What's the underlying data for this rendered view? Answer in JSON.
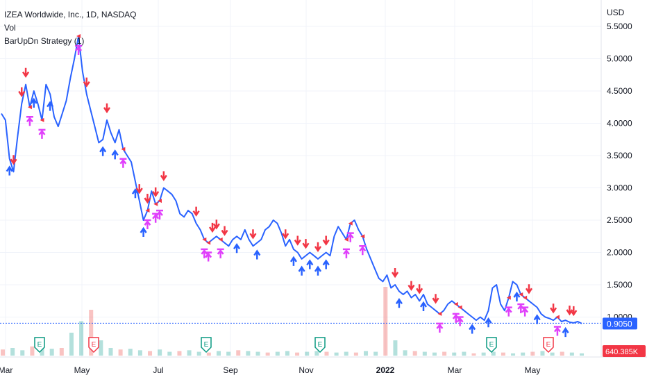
{
  "legend": {
    "title": "IZEA Worldwide, Inc., 1D, NASDAQ",
    "vol": "Vol",
    "strategy": "BarUpDn Strategy (1)"
  },
  "colors": {
    "line": "#2962ff",
    "sell_signal": "#f23645",
    "close_signal": "#e040fb",
    "buy_signal": "#2962ff",
    "price_label_bg": "#2962ff",
    "volume_label_bg": "#f23645",
    "volume_up": "#26a69a",
    "volume_down": "#ef5350",
    "earnings_green": "#089981",
    "earnings_red": "#f23645"
  },
  "chart_data": {
    "type": "line",
    "currency": "USD",
    "y_ticks": [
      "5.5000",
      "5.0000",
      "4.5000",
      "4.0000",
      "3.5000",
      "3.0000",
      "2.5000",
      "2.0000",
      "1.5000",
      "1.0000"
    ],
    "ylim": [
      0.85,
      5.6
    ],
    "x_labels": [
      "Mar",
      "May",
      "Jul",
      "Sep",
      "Nov",
      "2022",
      "Mar",
      "May"
    ],
    "last_price": "0.9050",
    "last_volume": "640.385K",
    "earnings_markers": [
      "E",
      "E",
      "E",
      "E",
      "E",
      "E"
    ],
    "series": [
      {
        "values": [
          4.15,
          4.05,
          3.45,
          3.25,
          3.8,
          4.3,
          4.6,
          4.25,
          4.5,
          4.3,
          4.05,
          4.6,
          4.45,
          4.1,
          3.95,
          4.15,
          4.35,
          4.7,
          5.0,
          5.35,
          4.8,
          4.45,
          4.2,
          3.95,
          3.7,
          3.75,
          4.05,
          3.85,
          3.7,
          3.9,
          3.6,
          3.5,
          3.4,
          3.1,
          2.8,
          2.5,
          2.65,
          2.95,
          2.75,
          2.8,
          3.0,
          2.95,
          2.9,
          2.8,
          2.6,
          2.55,
          2.65,
          2.6,
          2.45,
          2.35,
          2.2,
          2.15,
          2.2,
          2.25,
          2.2,
          2.15,
          2.1,
          2.2,
          2.25,
          2.2,
          2.35,
          2.2,
          2.1,
          2.15,
          2.2,
          2.35,
          2.4,
          2.5,
          2.45,
          2.3,
          2.1,
          2.2,
          2.05,
          2.0,
          1.9,
          1.95,
          2.0,
          1.95,
          1.9,
          1.95,
          2.0,
          1.95,
          2.25,
          2.4,
          2.3,
          2.2,
          2.45,
          2.5,
          2.35,
          2.25,
          2.05,
          1.9,
          1.75,
          1.6,
          1.55,
          1.65,
          1.45,
          1.5,
          1.4,
          1.35,
          1.4,
          1.3,
          1.35,
          1.25,
          1.35,
          1.2,
          1.15,
          1.1,
          1.05,
          1.1,
          1.2,
          1.25,
          1.2,
          1.15,
          1.1,
          1.05,
          1.0,
          0.95,
          1.0,
          0.95,
          1.1,
          1.45,
          1.5,
          1.2,
          1.1,
          1.3,
          1.55,
          1.5,
          1.35,
          1.3,
          1.25,
          1.2,
          1.15,
          1.05,
          1.0,
          0.98,
          0.95,
          1.0,
          0.93,
          0.95,
          0.92,
          0.91,
          0.93,
          0.9
        ]
      }
    ],
    "volume": [
      0.08,
      0.1,
      0.07,
      0.12,
      0.15,
      0.09,
      0.1,
      0.3,
      0.45,
      0.6,
      0.2,
      0.1,
      0.08,
      0.09,
      0.07,
      0.06,
      0.08,
      0.05,
      0.06,
      0.07,
      0.05,
      0.04,
      0.06,
      0.05,
      0.07,
      0.06,
      0.05,
      0.04,
      0.05,
      0.06,
      0.04,
      0.05,
      0.06,
      0.05,
      0.04,
      0.05,
      0.04,
      0.06,
      0.05,
      0.9,
      0.2,
      0.07,
      0.06,
      0.05,
      0.04,
      0.05,
      0.04,
      0.05,
      0.03,
      0.04,
      0.05,
      0.04,
      0.03,
      0.04,
      0.05,
      0.06,
      0.04,
      0.05,
      0.04,
      0.03
    ],
    "signals": [
      {
        "type": "sell",
        "i": 3
      },
      {
        "type": "sell",
        "i": 5
      },
      {
        "type": "sell",
        "i": 6
      },
      {
        "type": "close",
        "i": 7
      },
      {
        "type": "close",
        "i": 19
      },
      {
        "type": "sell",
        "i": 21
      },
      {
        "type": "sell",
        "i": 26
      },
      {
        "type": "close",
        "i": 30
      },
      {
        "type": "sell",
        "i": 34
      },
      {
        "type": "sell",
        "i": 36
      },
      {
        "type": "sell",
        "i": 38
      },
      {
        "type": "sell",
        "i": 40
      },
      {
        "type": "sell",
        "i": 48
      },
      {
        "type": "sell",
        "i": 52
      },
      {
        "type": "sell",
        "i": 53
      },
      {
        "type": "sell",
        "i": 55
      },
      {
        "type": "sell",
        "i": 62
      },
      {
        "type": "sell",
        "i": 70
      },
      {
        "type": "sell",
        "i": 73
      },
      {
        "type": "sell",
        "i": 75
      },
      {
        "type": "sell",
        "i": 78
      },
      {
        "type": "sell",
        "i": 80
      },
      {
        "type": "close",
        "i": 86
      },
      {
        "type": "close",
        "i": 89
      },
      {
        "type": "sell",
        "i": 97
      },
      {
        "type": "sell",
        "i": 101
      },
      {
        "type": "sell",
        "i": 103
      },
      {
        "type": "sell",
        "i": 107
      },
      {
        "type": "close",
        "i": 113
      },
      {
        "type": "close",
        "i": 125
      },
      {
        "type": "close",
        "i": 128
      },
      {
        "type": "close",
        "i": 129
      },
      {
        "type": "sell",
        "i": 130
      },
      {
        "type": "sell",
        "i": 136
      },
      {
        "type": "sell",
        "i": 140
      },
      {
        "type": "sell",
        "i": 141
      },
      {
        "type": "buy",
        "i": 2
      },
      {
        "type": "buy",
        "i": 8
      },
      {
        "type": "close",
        "i": 10
      },
      {
        "type": "buy",
        "i": 12
      },
      {
        "type": "buy",
        "i": 25
      },
      {
        "type": "buy",
        "i": 28
      },
      {
        "type": "buy",
        "i": 33
      },
      {
        "type": "buy",
        "i": 35
      },
      {
        "type": "close",
        "i": 36
      },
      {
        "type": "close",
        "i": 38
      },
      {
        "type": "close",
        "i": 39
      },
      {
        "type": "close",
        "i": 50
      },
      {
        "type": "close",
        "i": 51
      },
      {
        "type": "close",
        "i": 54
      },
      {
        "type": "buy",
        "i": 58
      },
      {
        "type": "buy",
        "i": 63
      },
      {
        "type": "buy",
        "i": 72
      },
      {
        "type": "buy",
        "i": 74
      },
      {
        "type": "buy",
        "i": 76
      },
      {
        "type": "buy",
        "i": 78
      },
      {
        "type": "buy",
        "i": 80
      },
      {
        "type": "close",
        "i": 85
      },
      {
        "type": "buy",
        "i": 98
      },
      {
        "type": "buy",
        "i": 104
      },
      {
        "type": "close",
        "i": 108
      },
      {
        "type": "close",
        "i": 112
      },
      {
        "type": "buy",
        "i": 116
      },
      {
        "type": "buy",
        "i": 120
      },
      {
        "type": "buy",
        "i": 127
      },
      {
        "type": "buy",
        "i": 132
      },
      {
        "type": "close",
        "i": 137
      },
      {
        "type": "buy",
        "i": 139
      }
    ]
  }
}
